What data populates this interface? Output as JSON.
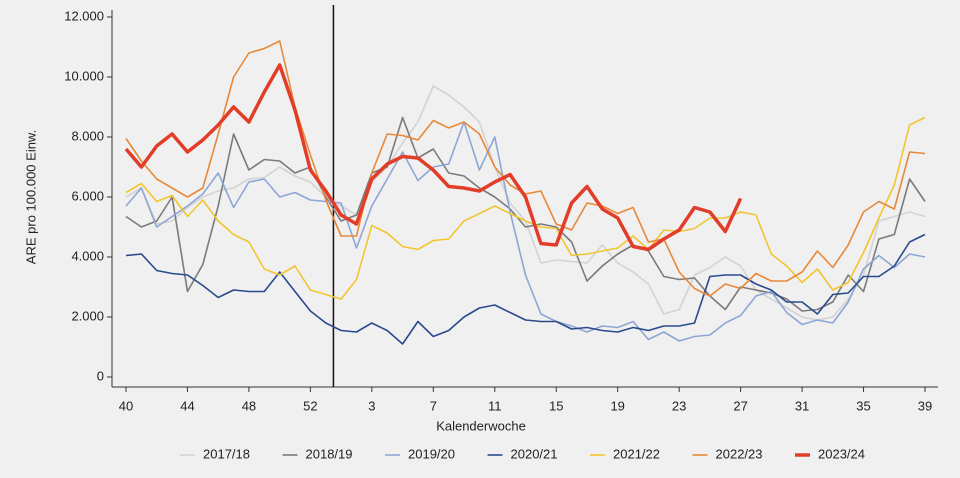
{
  "chart_data": {
    "type": "line",
    "x_label": "Kalenderwoche",
    "y_label": "ARE pro 100.000 Einw.",
    "categories": [
      "40",
      null,
      null,
      null,
      "44",
      null,
      null,
      null,
      "48",
      null,
      null,
      null,
      "52",
      null,
      null,
      null,
      "3",
      null,
      null,
      null,
      "7",
      null,
      null,
      null,
      "11",
      null,
      null,
      null,
      "15",
      null,
      null,
      null,
      "19",
      null,
      null,
      null,
      "23",
      null,
      null,
      null,
      "27",
      null,
      null,
      null,
      "31",
      null,
      null,
      null,
      "35",
      null,
      null,
      null,
      "39"
    ],
    "ylim": [
      0,
      12000
    ],
    "yticks": [
      0,
      {
        "value": 2000,
        "label": "2.000"
      },
      {
        "value": 4000,
        "label": "4.000"
      },
      {
        "value": 6000,
        "label": "6.000"
      },
      {
        "value": 8000,
        "label": "8.000"
      },
      {
        "value": 10000,
        "label": "10.000"
      },
      {
        "value": 12000,
        "label": "12.000"
      }
    ],
    "grid": false,
    "legend": "bottom",
    "series": [
      {
        "name": "2017/18",
        "color": "#d3d3d3",
        "values": [
          6000,
          6300,
          5100,
          5200,
          5650,
          6000,
          6200,
          6300,
          6600,
          6650,
          7000,
          6700,
          6500,
          6000,
          5700,
          5400,
          6500,
          7000,
          7800,
          8500,
          9700,
          9400,
          9000,
          8500,
          7000,
          5800,
          5200,
          3800,
          3900,
          3850,
          3800,
          4400,
          3800,
          3500,
          3100,
          2100,
          2250,
          3400,
          3650,
          4000,
          3700,
          2900,
          2600,
          2300,
          2000,
          1900,
          2000,
          2600,
          3400,
          5200,
          5350,
          5500,
          5350
        ]
      },
      {
        "name": "2018/19",
        "color": "#7b7b7b",
        "values": [
          5350,
          5000,
          5200,
          6000,
          2850,
          3750,
          5700,
          8100,
          6900,
          7250,
          7200,
          6800,
          7000,
          6000,
          5200,
          5400,
          6800,
          7000,
          8650,
          7300,
          7600,
          6800,
          6700,
          6300,
          6000,
          5600,
          5000,
          5100,
          5000,
          4500,
          3200,
          3700,
          4100,
          4400,
          4200,
          3350,
          3250,
          3300,
          2700,
          2250,
          3000,
          2900,
          2800,
          2600,
          2200,
          2250,
          2500,
          3400,
          2850,
          4600,
          4750,
          6600,
          5850
        ]
      },
      {
        "name": "2019/20",
        "color": "#8ea6d6",
        "values": [
          5700,
          6300,
          5000,
          5350,
          5700,
          6100,
          6800,
          5650,
          6500,
          6600,
          6000,
          6150,
          5900,
          5850,
          5800,
          4300,
          5700,
          6600,
          7500,
          6550,
          7000,
          7100,
          8500,
          6900,
          8000,
          5500,
          3400,
          2100,
          1850,
          1700,
          1500,
          1700,
          1650,
          1850,
          1250,
          1500,
          1200,
          1350,
          1400,
          1800,
          2050,
          2700,
          2850,
          2150,
          1750,
          1900,
          1800,
          2500,
          3600,
          4050,
          3650,
          4100,
          4000
        ]
      },
      {
        "name": "2020/21",
        "color": "#2a4a8e",
        "values": [
          4050,
          4100,
          3550,
          3450,
          3400,
          3050,
          2650,
          2900,
          2850,
          2850,
          3500,
          2850,
          2200,
          1800,
          1550,
          1500,
          1800,
          1550,
          1100,
          1850,
          1350,
          1550,
          2000,
          2300,
          2400,
          2150,
          1900,
          1850,
          1850,
          1600,
          1650,
          1550,
          1500,
          1650,
          1550,
          1700,
          1700,
          1800,
          3350,
          3400,
          3400,
          3100,
          2900,
          2500,
          2500,
          2100,
          2750,
          2800,
          3350,
          3350,
          3700,
          4500,
          4750
        ]
      },
      {
        "name": "2021/22",
        "color": "#f2c530",
        "values": [
          6150,
          6450,
          5850,
          6050,
          5350,
          5900,
          5200,
          4750,
          4500,
          3600,
          3400,
          3700,
          2900,
          2750,
          2600,
          3250,
          5050,
          4800,
          4350,
          4250,
          4550,
          4600,
          5200,
          5450,
          5700,
          5450,
          5200,
          5000,
          4950,
          4050,
          4100,
          4200,
          4300,
          4700,
          4250,
          4900,
          4850,
          4950,
          5300,
          5300,
          5500,
          5400,
          4100,
          3700,
          3150,
          3600,
          2900,
          3150,
          4150,
          5300,
          6400,
          8400,
          8650
        ]
      },
      {
        "name": "2022/23",
        "color": "#e8893a",
        "values": [
          7950,
          7200,
          6600,
          6300,
          6000,
          6300,
          8100,
          10000,
          10800,
          10950,
          11200,
          9000,
          7400,
          5900,
          4700,
          4700,
          6800,
          8100,
          8050,
          7900,
          8550,
          8300,
          8500,
          8100,
          7000,
          6400,
          6100,
          6200,
          5100,
          4900,
          5800,
          5700,
          5450,
          5650,
          4500,
          4600,
          3500,
          2950,
          2700,
          3100,
          2950,
          3450,
          3200,
          3200,
          3500,
          4200,
          3650,
          4400,
          5500,
          5850,
          5600,
          7500,
          7450
        ]
      },
      {
        "name": "2023/24",
        "color": "#e23d28",
        "values": [
          7600,
          7000,
          7700,
          8100,
          7500,
          7900,
          8400,
          9000,
          8500,
          9500,
          10400,
          8900,
          6900,
          6200,
          5400,
          5100,
          6600,
          7100,
          7350,
          7300,
          6900,
          6350,
          6300,
          6200,
          6500,
          6750,
          6000,
          4450,
          4400,
          5800,
          6350,
          5600,
          5300,
          4350,
          4250,
          4600,
          4900,
          5650,
          5500,
          4850,
          5950,
          null,
          null,
          null,
          null,
          null,
          null,
          null,
          null,
          null,
          null,
          null,
          null
        ]
      }
    ]
  }
}
